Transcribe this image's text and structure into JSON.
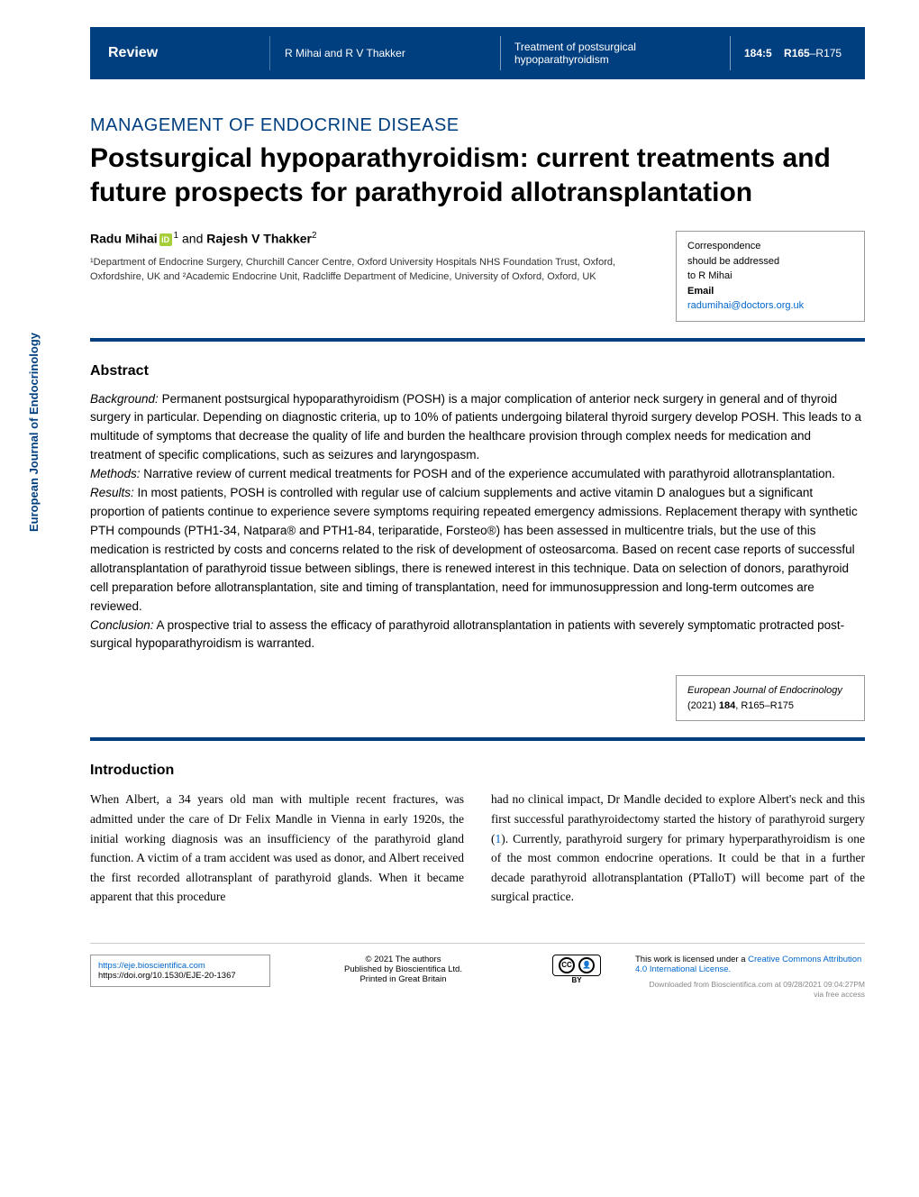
{
  "header": {
    "review_label": "Review",
    "authors_short": "R Mihai and R V Thakker",
    "short_title_line1": "Treatment of postsurgical",
    "short_title_line2": "hypoparathyroidism",
    "volume_issue": "184:5",
    "pages_strong": "R165",
    "pages_rest": "–R175"
  },
  "vertical_label": "European Journal of Endocrinology",
  "section_label": "MANAGEMENT OF ENDOCRINE DISEASE",
  "title": "Postsurgical hypoparathyroidism: current treatments and future prospects for parathyroid allotransplantation",
  "authors": {
    "a1_name": "Radu Mihai",
    "a1_sup": "1",
    "join": " and ",
    "a2_name": "Rajesh V Thakker",
    "a2_sup": "2"
  },
  "affiliations": "¹Department of Endocrine Surgery, Churchill Cancer Centre, Oxford University Hospitals NHS Foundation Trust, Oxford, Oxfordshire, UK and ²Academic Endocrine Unit, Radcliffe Department of Medicine, University of Oxford, Oxford, UK",
  "correspondence": {
    "line1": "Correspondence",
    "line2": "should be addressed",
    "line3": "to R Mihai",
    "email_label": "Email",
    "email": "radumihai@doctors.org.uk"
  },
  "abstract": {
    "heading": "Abstract",
    "background_label": "Background:",
    "background": " Permanent postsurgical hypoparathyroidism (POSH) is a major complication of anterior neck surgery in general and of thyroid surgery in particular. Depending on diagnostic criteria, up to 10% of patients undergoing bilateral thyroid surgery develop POSH. This leads to a multitude of symptoms that decrease the quality of life and burden the healthcare provision through complex needs for medication and treatment of specific complications, such as seizures and laryngospasm.",
    "methods_label": "Methods:",
    "methods": " Narrative review of current medical treatments for POSH and of the experience accumulated with parathyroid allotransplantation.",
    "results_label": "Results:",
    "results": " In most patients, POSH is controlled with regular use of calcium supplements and active vitamin D analogues but a significant proportion of patients continue to experience severe symptoms requiring repeated emergency admissions. Replacement therapy with synthetic PTH compounds (PTH1-34, Natpara® and PTH1-84, teriparatide, Forsteo®) has been assessed in multicentre trials, but the use of this medication is restricted by costs and concerns related to the risk of development of osteosarcoma. Based on recent case reports of successful allotransplantation of parathyroid tissue between siblings, there is renewed interest in this technique. Data on selection of donors, parathyroid cell preparation before allotransplantation, site and timing of transplantation, need for immunosuppression and long-term outcomes are reviewed.",
    "conclusion_label": "Conclusion:",
    "conclusion": " A prospective trial to assess the efficacy of parathyroid allotransplantation in patients with severely symptomatic protracted post-surgical hypoparathyroidism is warranted."
  },
  "citation": {
    "journal": "European Journal of Endocrinology",
    "year_vol": "(2021) ",
    "vol_bold": "184",
    "pages": ", R165–R175"
  },
  "introduction": {
    "heading": "Introduction",
    "col1": "When Albert, a 34 years old man with multiple recent fractures, was admitted under the care of Dr Felix Mandle in Vienna in early 1920s, the initial working diagnosis was an insufficiency of the parathyroid gland function. A victim of a tram accident was used as donor, and Albert received the first recorded allotransplant of parathyroid glands. When it became apparent that this procedure",
    "col2_a": "had no clinical impact, Dr Mandle decided to explore Albert's neck and this first successful parathyroidectomy started the history of parathyroid surgery (",
    "col2_ref": "1",
    "col2_b": "). Currently, parathyroid surgery for primary hyperparathyroidism is one of the most common endocrine operations. It could be that in a further decade parathyroid allotransplantation (PTalloT) will become part of the surgical practice."
  },
  "footer": {
    "url": "https://eje.bioscientifica.com",
    "doi": "https://doi.org/10.1530/EJE-20-1367",
    "copyright1": "© 2021 The authors",
    "copyright2": "Published by Bioscientifica Ltd.",
    "copyright3": "Printed in Great Britain",
    "license_a": "This work is licensed under a ",
    "license_link": "Creative Commons Attribution 4.0 International License.",
    "cc": "CC",
    "by": "BY"
  },
  "download": {
    "line1": "Downloaded from Bioscientifica.com at 09/28/2021 09:04:27PM",
    "line2": "via free access"
  }
}
